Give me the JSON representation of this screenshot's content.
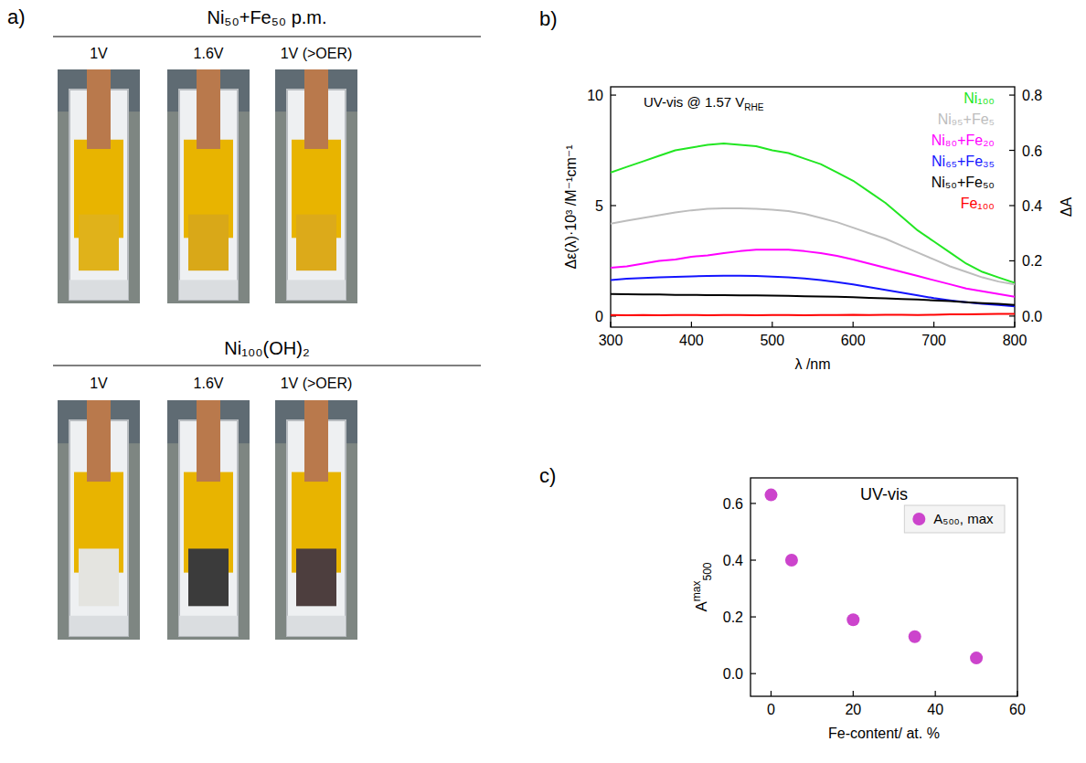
{
  "photo_panel": {
    "panel_label": "a)",
    "groups": [
      {
        "title": "Ni₅₀+Fe₅₀ p.m.",
        "potentials": [
          "1V",
          "1.6V",
          "1V (>OER)"
        ]
      },
      {
        "title": "Ni₁₀₀(OH)₂",
        "potentials": [
          "1V",
          "1.6V",
          "1V (>OER)"
        ]
      }
    ]
  },
  "chart_data": [
    {
      "type": "line",
      "panel_label": "b)",
      "annotation": {
        "text": "UV-vis @ 1.57 V",
        "subscript": "RHE"
      },
      "x_label": "λ /nm",
      "y_label": "Δε(λ)·10³ /M⁻¹cm⁻¹",
      "y2_label": "ΔA",
      "x": [
        300,
        320,
        340,
        360,
        380,
        400,
        420,
        440,
        460,
        480,
        500,
        520,
        540,
        560,
        580,
        600,
        620,
        640,
        660,
        680,
        700,
        720,
        740,
        760,
        780,
        800
      ],
      "xlim": [
        300,
        800
      ],
      "xticks": [
        300,
        400,
        500,
        600,
        700,
        800
      ],
      "ylim": [
        -0.5,
        10.375
      ],
      "yticks": [
        0,
        5,
        10
      ],
      "y2lim": [
        -0.04,
        0.83
      ],
      "y2ticks": [
        {
          "value": 0,
          "label": "0.0"
        },
        {
          "value": 0.2,
          "label": "0.2"
        },
        {
          "value": 0.4,
          "label": "0.4"
        },
        {
          "value": 0.6,
          "label": "0.6"
        },
        {
          "value": 0.8,
          "label": "0.8"
        }
      ],
      "legend": "upper right",
      "series": [
        {
          "name": "Ni₁₀₀",
          "color": "#22e622",
          "axis": "y2",
          "values": [
            0.52,
            0.54,
            0.56,
            0.58,
            0.6,
            0.61,
            0.62,
            0.625,
            0.62,
            0.615,
            0.6,
            0.59,
            0.57,
            0.55,
            0.52,
            0.49,
            0.45,
            0.41,
            0.36,
            0.31,
            0.27,
            0.23,
            0.19,
            0.16,
            0.14,
            0.12
          ]
        },
        {
          "name": "Ni₉₅+Fe₅",
          "color": "#bdbdbd",
          "axis": "y2",
          "values": [
            0.335,
            0.345,
            0.355,
            0.365,
            0.375,
            0.383,
            0.388,
            0.39,
            0.39,
            0.388,
            0.385,
            0.38,
            0.37,
            0.355,
            0.34,
            0.32,
            0.3,
            0.28,
            0.255,
            0.23,
            0.205,
            0.18,
            0.16,
            0.14,
            0.125,
            0.115
          ]
        },
        {
          "name": "Ni₈₀+Fe₂₀",
          "color": "#ff00ff",
          "axis": "y2",
          "values": [
            0.175,
            0.18,
            0.19,
            0.2,
            0.205,
            0.215,
            0.22,
            0.228,
            0.235,
            0.24,
            0.24,
            0.24,
            0.235,
            0.228,
            0.218,
            0.205,
            0.19,
            0.175,
            0.16,
            0.145,
            0.13,
            0.115,
            0.1,
            0.09,
            0.08,
            0.07
          ]
        },
        {
          "name": "Ni₆₅+Fe₃₅",
          "color": "#1414ff",
          "axis": "y2",
          "values": [
            0.13,
            0.135,
            0.138,
            0.14,
            0.142,
            0.144,
            0.145,
            0.146,
            0.146,
            0.145,
            0.143,
            0.14,
            0.136,
            0.13,
            0.123,
            0.115,
            0.105,
            0.095,
            0.085,
            0.075,
            0.065,
            0.057,
            0.05,
            0.044,
            0.04,
            0.035
          ]
        },
        {
          "name": "Ni₅₀+Fe₅₀",
          "color": "#000000",
          "axis": "y2",
          "values": [
            0.08,
            0.079,
            0.078,
            0.078,
            0.077,
            0.077,
            0.076,
            0.076,
            0.075,
            0.075,
            0.074,
            0.073,
            0.072,
            0.071,
            0.07,
            0.068,
            0.066,
            0.064,
            0.062,
            0.06,
            0.057,
            0.054,
            0.05,
            0.047,
            0.044,
            0.04
          ]
        },
        {
          "name": "Fe₁₀₀",
          "color": "#ff0000",
          "axis": "y2",
          "values": [
            0.004,
            0.003,
            0.004,
            0.003,
            0.004,
            0.004,
            0.003,
            0.004,
            0.004,
            0.003,
            0.004,
            0.004,
            0.003,
            0.004,
            0.004,
            0.005,
            0.004,
            0.005,
            0.005,
            0.004,
            0.005,
            0.006,
            0.006,
            0.007,
            0.008,
            0.008
          ]
        }
      ]
    },
    {
      "type": "scatter",
      "panel_label": "c)",
      "title": "UV-vis",
      "x_label": "Fe-content/ at. %",
      "y_label": {
        "text": "A",
        "superscript": "max",
        "subscript": "500"
      },
      "x": [
        0,
        5,
        20,
        35,
        50
      ],
      "xlim": [
        -5,
        60
      ],
      "xticks": [
        0,
        20,
        40,
        60
      ],
      "ylim": [
        -0.08,
        0.69
      ],
      "yticks": [
        {
          "value": 0,
          "label": "0.0"
        },
        {
          "value": 0.2,
          "label": "0.2"
        },
        {
          "value": 0.4,
          "label": "0.4"
        },
        {
          "value": 0.6,
          "label": "0.6"
        }
      ],
      "legend": "upper right",
      "series": [
        {
          "name": "A₅₀₀, max",
          "color": "#cc44cc",
          "marker": "circle",
          "values": [
            0.63,
            0.4,
            0.19,
            0.13,
            0.055
          ]
        }
      ]
    }
  ]
}
